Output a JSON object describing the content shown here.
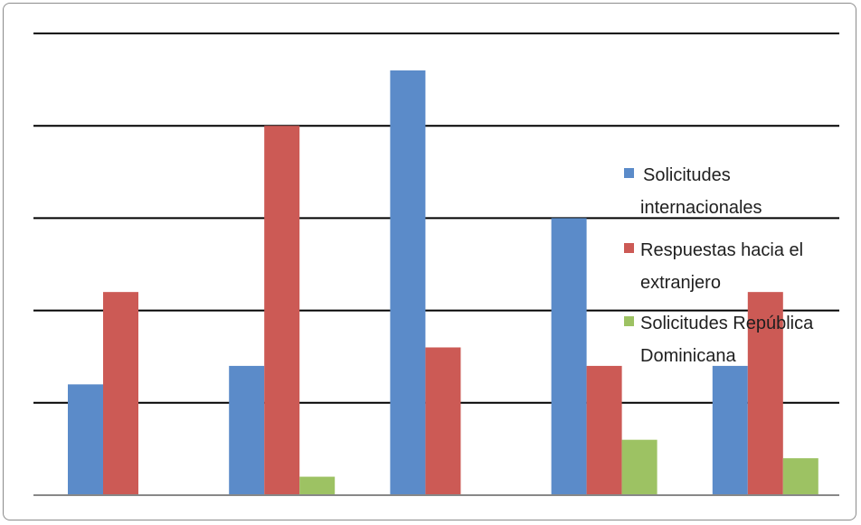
{
  "chart_data": {
    "type": "bar",
    "title": "",
    "xlabel": "",
    "ylabel": "",
    "categories": [
      "",
      "",
      "",
      "",
      ""
    ],
    "ylim": [
      0,
      5
    ],
    "grid": true,
    "legend_position": "right",
    "series": [
      {
        "name": "Solicitudes internacionales",
        "color": "#5b8bc9",
        "values": [
          1.2,
          1.4,
          4.6,
          3.0,
          1.4
        ]
      },
      {
        "name": "Respuestas hacia el extranjero",
        "color": "#cc5a55",
        "values": [
          2.2,
          4.0,
          1.6,
          1.4,
          2.2
        ]
      },
      {
        "name": "Solicitudes República Dominicana",
        "color": "#9dc263",
        "values": [
          0.0,
          0.2,
          0.0,
          0.6,
          0.4
        ]
      }
    ],
    "legend": [
      {
        "lines": [
          "Solicitudes",
          "internacionales"
        ]
      },
      {
        "lines": [
          "Respuestas hacia el",
          "extranjero"
        ]
      },
      {
        "lines": [
          "Solicitudes República",
          "Dominicana"
        ]
      }
    ]
  }
}
